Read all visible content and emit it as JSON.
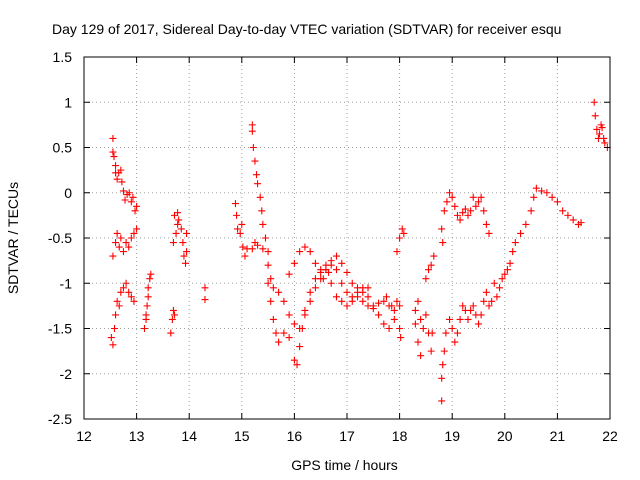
{
  "chart_data": {
    "type": "scatter",
    "title": "Day 129 of 2017, Sidereal Day-to-day VTEC variation (SDTVAR) for receiver esqu",
    "xlabel": "GPS time / hours",
    "ylabel": "SDTVAR / TECUs",
    "xlim": [
      12,
      22
    ],
    "ylim": [
      -2.5,
      1.5
    ],
    "xticks": [
      "12",
      "13",
      "14",
      "15",
      "16",
      "17",
      "18",
      "19",
      "20",
      "21",
      "22"
    ],
    "yticks": [
      "-2.5",
      "-2",
      "-1.5",
      "-1",
      "-0.5",
      "0",
      "0.5",
      "1",
      "1.5"
    ],
    "xtick_values": [
      12,
      13,
      14,
      15,
      16,
      17,
      18,
      19,
      20,
      21,
      22
    ],
    "ytick_values": [
      -2.5,
      -2,
      -1.5,
      -1,
      -0.5,
      0,
      0.5,
      1,
      1.5
    ],
    "grid": true,
    "marker": "+",
    "series": [
      {
        "name": "SDTVAR",
        "color": "#ff0000",
        "points": [
          [
            12.55,
            0.6
          ],
          [
            12.55,
            0.45
          ],
          [
            12.57,
            0.4
          ],
          [
            12.6,
            0.3
          ],
          [
            12.6,
            0.22
          ],
          [
            12.63,
            0.15
          ],
          [
            12.66,
            0.22
          ],
          [
            12.7,
            0.25
          ],
          [
            12.72,
            0.12
          ],
          [
            12.75,
            0.02
          ],
          [
            12.78,
            -0.08
          ],
          [
            12.82,
            -0.02
          ],
          [
            12.86,
            0.0
          ],
          [
            12.9,
            -0.1
          ],
          [
            12.93,
            -0.05
          ],
          [
            12.97,
            -0.2
          ],
          [
            13.0,
            -0.15
          ],
          [
            12.55,
            -0.7
          ],
          [
            12.6,
            -0.55
          ],
          [
            12.63,
            -0.45
          ],
          [
            12.67,
            -0.6
          ],
          [
            12.7,
            -0.5
          ],
          [
            12.75,
            -0.65
          ],
          [
            12.8,
            -0.55
          ],
          [
            12.85,
            -0.6
          ],
          [
            12.9,
            -0.5
          ],
          [
            12.95,
            -0.45
          ],
          [
            13.0,
            -0.4
          ],
          [
            12.52,
            -1.6
          ],
          [
            12.55,
            -1.68
          ],
          [
            12.58,
            -1.5
          ],
          [
            12.6,
            -1.35
          ],
          [
            12.63,
            -1.2
          ],
          [
            12.67,
            -1.25
          ],
          [
            12.7,
            -1.1
          ],
          [
            12.75,
            -1.05
          ],
          [
            12.8,
            -1.0
          ],
          [
            12.85,
            -1.1
          ],
          [
            12.9,
            -1.15
          ],
          [
            12.95,
            -1.2
          ],
          [
            13.15,
            -1.5
          ],
          [
            13.18,
            -1.35
          ],
          [
            13.2,
            -1.25
          ],
          [
            13.22,
            -1.05
          ],
          [
            13.25,
            -0.95
          ],
          [
            13.27,
            -0.9
          ],
          [
            13.22,
            -1.15
          ],
          [
            13.18,
            -1.4
          ],
          [
            13.65,
            -1.55
          ],
          [
            13.68,
            -1.4
          ],
          [
            13.7,
            -1.3
          ],
          [
            13.72,
            -1.35
          ],
          [
            13.75,
            -0.45
          ],
          [
            13.78,
            -0.35
          ],
          [
            13.7,
            -0.55
          ],
          [
            13.72,
            -0.25
          ],
          [
            13.78,
            -0.22
          ],
          [
            13.8,
            -0.3
          ],
          [
            13.85,
            -0.4
          ],
          [
            13.88,
            -0.55
          ],
          [
            13.9,
            -0.7
          ],
          [
            13.93,
            -0.78
          ],
          [
            13.95,
            -0.65
          ],
          [
            13.95,
            -0.45
          ],
          [
            14.3,
            -1.05
          ],
          [
            14.3,
            -1.18
          ],
          [
            14.88,
            -0.12
          ],
          [
            14.9,
            -0.25
          ],
          [
            14.92,
            -0.4
          ],
          [
            14.97,
            -0.45
          ],
          [
            15.0,
            -0.35
          ],
          [
            15.02,
            -0.6
          ],
          [
            15.06,
            -0.7
          ],
          [
            15.1,
            -0.62
          ],
          [
            15.2,
            0.75
          ],
          [
            15.2,
            0.68
          ],
          [
            15.22,
            0.5
          ],
          [
            15.25,
            0.35
          ],
          [
            15.28,
            0.2
          ],
          [
            15.3,
            0.1
          ],
          [
            15.35,
            -0.05
          ],
          [
            15.38,
            -0.2
          ],
          [
            15.4,
            -0.35
          ],
          [
            15.45,
            -0.5
          ],
          [
            15.5,
            -0.65
          ],
          [
            15.2,
            -0.62
          ],
          [
            15.25,
            -0.55
          ],
          [
            15.3,
            -0.58
          ],
          [
            15.4,
            -0.62
          ],
          [
            15.5,
            -0.8
          ],
          [
            15.55,
            -0.95
          ],
          [
            15.6,
            -1.05
          ],
          [
            15.7,
            -1.1
          ],
          [
            15.8,
            -1.2
          ],
          [
            15.9,
            -1.35
          ],
          [
            16.0,
            -1.45
          ],
          [
            16.1,
            -1.5
          ],
          [
            16.2,
            -1.35
          ],
          [
            16.3,
            -1.2
          ],
          [
            16.4,
            -1.05
          ],
          [
            16.5,
            -0.95
          ],
          [
            16.6,
            -0.85
          ],
          [
            16.7,
            -0.8
          ],
          [
            16.8,
            -0.85
          ],
          [
            16.9,
            -1.0
          ],
          [
            17.0,
            -1.1
          ],
          [
            17.1,
            -1.15
          ],
          [
            17.2,
            -1.1
          ],
          [
            17.3,
            -1.05
          ],
          [
            17.4,
            -1.15
          ],
          [
            17.5,
            -1.25
          ],
          [
            17.6,
            -1.35
          ],
          [
            17.7,
            -1.45
          ],
          [
            17.8,
            -1.5
          ],
          [
            17.9,
            -1.4
          ],
          [
            18.0,
            -1.25
          ],
          [
            15.5,
            -1.0
          ],
          [
            15.55,
            -1.2
          ],
          [
            15.6,
            -1.4
          ],
          [
            15.65,
            -1.55
          ],
          [
            15.7,
            -1.65
          ],
          [
            15.8,
            -1.55
          ],
          [
            15.9,
            -1.6
          ],
          [
            16.0,
            -1.85
          ],
          [
            16.05,
            -1.9
          ],
          [
            16.1,
            -1.7
          ],
          [
            16.15,
            -1.5
          ],
          [
            16.2,
            -1.3
          ],
          [
            16.3,
            -1.1
          ],
          [
            16.4,
            -0.95
          ],
          [
            16.5,
            -0.85
          ],
          [
            16.6,
            -0.8
          ],
          [
            16.65,
            -0.88
          ],
          [
            16.7,
            -1.0
          ],
          [
            16.8,
            -1.15
          ],
          [
            16.9,
            -1.2
          ],
          [
            17.0,
            -1.25
          ],
          [
            17.1,
            -1.2
          ],
          [
            17.2,
            -1.15
          ],
          [
            17.3,
            -1.2
          ],
          [
            17.4,
            -1.25
          ],
          [
            17.5,
            -1.28
          ],
          [
            17.6,
            -1.22
          ],
          [
            17.7,
            -1.2
          ],
          [
            17.8,
            -1.25
          ],
          [
            17.9,
            -1.3
          ],
          [
            15.9,
            -0.9
          ],
          [
            16.0,
            -0.78
          ],
          [
            16.1,
            -0.65
          ],
          [
            16.2,
            -0.6
          ],
          [
            16.3,
            -0.65
          ],
          [
            16.4,
            -0.78
          ],
          [
            16.5,
            -0.88
          ],
          [
            16.55,
            -0.95
          ],
          [
            16.6,
            -0.85
          ],
          [
            16.7,
            -0.75
          ],
          [
            16.8,
            -0.7
          ],
          [
            16.9,
            -0.78
          ],
          [
            17.0,
            -0.88
          ],
          [
            17.1,
            -1.0
          ],
          [
            17.2,
            -1.05
          ],
          [
            17.3,
            -1.1
          ],
          [
            17.4,
            -1.05
          ],
          [
            17.75,
            -1.15
          ],
          [
            17.85,
            -1.25
          ],
          [
            17.95,
            -1.2
          ],
          [
            18.0,
            -1.5
          ],
          [
            18.02,
            -1.6
          ],
          [
            17.95,
            -0.65
          ],
          [
            18.0,
            -0.5
          ],
          [
            18.05,
            -0.4
          ],
          [
            18.08,
            -0.45
          ],
          [
            18.3,
            -1.45
          ],
          [
            18.35,
            -1.65
          ],
          [
            18.4,
            -1.8
          ],
          [
            18.45,
            -1.5
          ],
          [
            18.5,
            -1.35
          ],
          [
            18.55,
            -1.55
          ],
          [
            18.6,
            -1.75
          ],
          [
            18.62,
            -1.55
          ],
          [
            18.3,
            -1.3
          ],
          [
            18.35,
            -1.2
          ],
          [
            18.4,
            -1.4
          ],
          [
            18.5,
            -0.95
          ],
          [
            18.55,
            -0.85
          ],
          [
            18.6,
            -0.8
          ],
          [
            18.65,
            -0.7
          ],
          [
            18.8,
            -2.05
          ],
          [
            18.8,
            -2.3
          ],
          [
            18.82,
            -1.9
          ],
          [
            18.85,
            -1.75
          ],
          [
            18.88,
            -1.55
          ],
          [
            18.8,
            -0.4
          ],
          [
            18.82,
            -0.55
          ],
          [
            18.85,
            -0.2
          ],
          [
            18.9,
            -0.1
          ],
          [
            18.95,
            0.0
          ],
          [
            19.0,
            -0.05
          ],
          [
            19.05,
            -0.15
          ],
          [
            19.1,
            -0.25
          ],
          [
            19.15,
            -0.3
          ],
          [
            19.2,
            -0.22
          ],
          [
            19.25,
            -0.18
          ],
          [
            19.3,
            -0.25
          ],
          [
            19.35,
            -0.2
          ],
          [
            19.4,
            -0.05
          ],
          [
            19.45,
            -0.15
          ],
          [
            19.5,
            -0.1
          ],
          [
            19.55,
            -0.05
          ],
          [
            19.6,
            -0.2
          ],
          [
            19.65,
            -0.35
          ],
          [
            19.7,
            -0.45
          ],
          [
            18.95,
            -1.4
          ],
          [
            19.0,
            -1.5
          ],
          [
            19.05,
            -1.65
          ],
          [
            19.1,
            -1.55
          ],
          [
            19.15,
            -1.4
          ],
          [
            19.2,
            -1.25
          ],
          [
            19.25,
            -1.3
          ],
          [
            19.3,
            -1.4
          ],
          [
            19.35,
            -1.3
          ],
          [
            19.4,
            -1.25
          ],
          [
            19.45,
            -1.35
          ],
          [
            19.5,
            -1.45
          ],
          [
            19.55,
            -1.35
          ],
          [
            19.6,
            -1.2
          ],
          [
            19.65,
            -1.1
          ],
          [
            19.7,
            -1.25
          ],
          [
            19.75,
            -1.2
          ],
          [
            19.8,
            -1.0
          ],
          [
            19.85,
            -1.15
          ],
          [
            19.9,
            -1.05
          ],
          [
            19.95,
            -0.95
          ],
          [
            20.0,
            -0.9
          ],
          [
            20.05,
            -0.85
          ],
          [
            20.1,
            -0.78
          ],
          [
            20.15,
            -0.65
          ],
          [
            20.2,
            -0.55
          ],
          [
            20.3,
            -0.45
          ],
          [
            20.4,
            -0.35
          ],
          [
            20.5,
            -0.2
          ],
          [
            20.55,
            -0.05
          ],
          [
            20.6,
            0.05
          ],
          [
            20.7,
            0.02
          ],
          [
            20.8,
            0.0
          ],
          [
            20.9,
            -0.05
          ],
          [
            21.0,
            -0.1
          ],
          [
            21.1,
            -0.2
          ],
          [
            21.2,
            -0.25
          ],
          [
            21.3,
            -0.3
          ],
          [
            21.4,
            -0.35
          ],
          [
            21.45,
            -0.33
          ],
          [
            21.7,
            1.0
          ],
          [
            21.72,
            0.85
          ],
          [
            21.75,
            0.7
          ],
          [
            21.78,
            0.6
          ],
          [
            21.8,
            0.65
          ],
          [
            21.83,
            0.75
          ],
          [
            21.85,
            0.72
          ],
          [
            21.88,
            0.6
          ],
          [
            21.9,
            0.55
          ],
          [
            21.95,
            0.5
          ]
        ]
      }
    ]
  }
}
